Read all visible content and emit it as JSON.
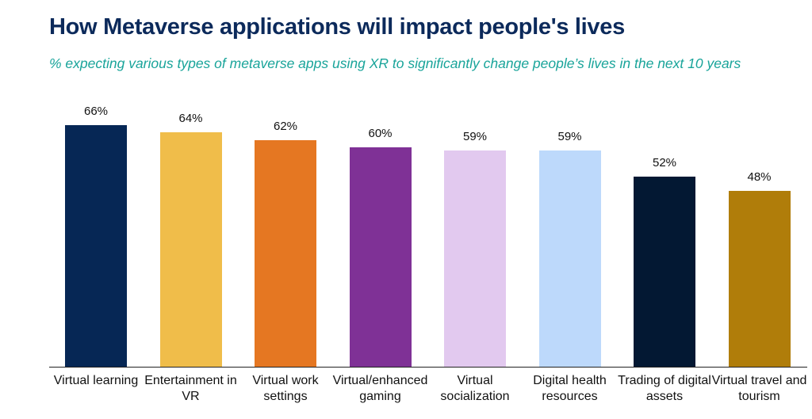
{
  "chart_data": {
    "type": "bar",
    "title": "How Metaverse applications will impact people's lives",
    "subtitle": "% expecting various types of metaverse apps using XR to significantly change people’s lives in the next 10 years",
    "categories": [
      "Virtual learning",
      "Entertainment in VR",
      "Virtual work settings",
      "Virtual/enhanced gaming",
      "Virtual socialization",
      "Digital health resources",
      "Trading of digital assets",
      "Virtual travel and tourism"
    ],
    "values": [
      66,
      64,
      62,
      60,
      59,
      59,
      52,
      48
    ],
    "value_labels": [
      "66%",
      "64%",
      "62%",
      "60%",
      "59%",
      "59%",
      "52%",
      "48%"
    ],
    "colors": [
      "#062755",
      "#f0bd4a",
      "#e57722",
      "#7f3196",
      "#e2c9ef",
      "#bdd9fb",
      "#031833",
      "#b07d0a"
    ]
  }
}
